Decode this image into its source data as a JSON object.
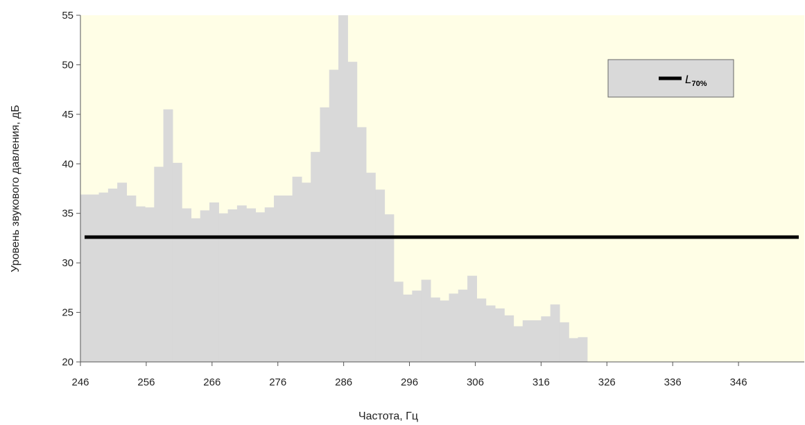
{
  "chart_data": {
    "type": "bar",
    "title": "",
    "xlabel": "Частота, Гц",
    "ylabel": "Уровень звукового давления, дБ",
    "xlim": [
      246,
      356
    ],
    "ylim": [
      20,
      55
    ],
    "x_ticks": [
      246,
      256,
      266,
      276,
      286,
      296,
      306,
      316,
      326,
      336,
      346
    ],
    "y_ticks": [
      20,
      25,
      30,
      35,
      40,
      45,
      50,
      55
    ],
    "bin_width": 1.4,
    "series": [
      {
        "x_start": 246,
        "values": [
          36.9,
          36.9,
          37.1,
          37.5,
          38.1,
          36.8,
          35.7,
          35.6,
          39.7,
          45.5,
          40.1,
          35.5,
          34.5,
          35.3,
          36.1,
          35.0,
          35.4,
          35.8,
          35.5,
          35.1,
          35.6,
          36.8,
          36.8,
          38.7,
          38.1,
          41.2,
          45.7,
          49.5,
          55.0,
          50.3,
          43.7,
          39.1,
          37.4,
          34.9,
          28.1,
          26.8,
          27.2,
          28.3,
          26.5,
          26.2,
          26.9,
          27.3,
          28.7,
          26.4,
          25.7,
          25.4,
          24.7,
          23.6,
          24.2,
          24.2,
          24.6,
          25.8,
          24.0,
          22.4,
          22.5
        ],
        "color": "#d9d9d9"
      }
    ],
    "reference_line": {
      "name": "L70%",
      "value": 32.6,
      "color": "#000000"
    },
    "legend": {
      "label": "L",
      "label_sub": "70%",
      "placement": "top-right"
    },
    "colors": {
      "plot_bg": "#fffee6",
      "bars": "#d9d9d9",
      "legend_bg": "#d9d9d9"
    },
    "grid": false
  }
}
